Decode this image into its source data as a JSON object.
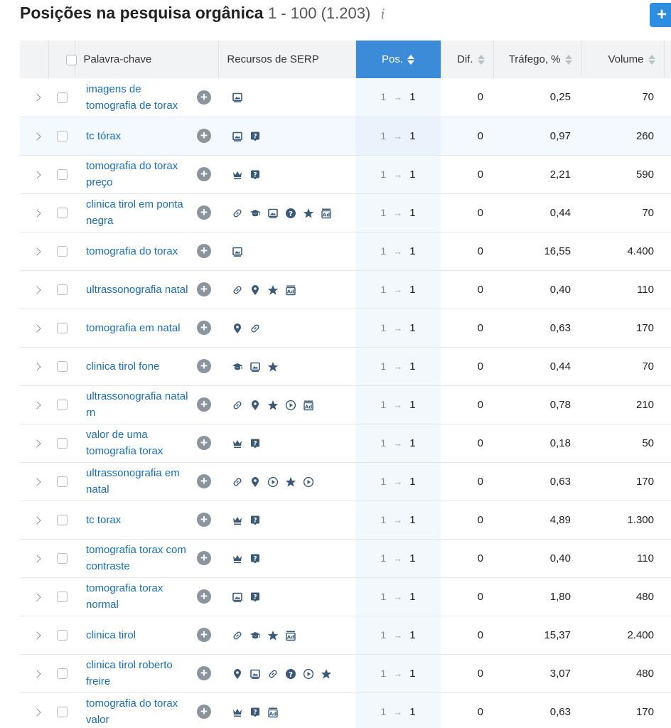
{
  "header": {
    "title": "Posições na pesquisa orgânica",
    "range": "1 - 100 (1.203)",
    "info_glyph": "i",
    "add_glyph": "+"
  },
  "columns": {
    "keyword": "Palavra-chave",
    "serp": "Recursos de SERP",
    "pos": "Pos.",
    "dif": "Dif.",
    "traffic": "Tráfego, %",
    "volume": "Volume"
  },
  "icons": {
    "image": "image-icon",
    "question": "faq-icon",
    "crown": "crown-icon",
    "link": "link-icon",
    "academic": "graduation-cap-icon",
    "help": "question-circle-icon",
    "star": "star-icon",
    "ad": "ad-icon",
    "pin": "map-pin-icon",
    "video": "video-icon"
  },
  "rows": [
    {
      "keyword": "imagens de tomografia de torax",
      "serp": [
        "image"
      ],
      "prev": "1",
      "pos": "1",
      "dif": "0",
      "traffic": "0,25",
      "volume": "70",
      "highlight": false
    },
    {
      "keyword": "tc tórax",
      "serp": [
        "image",
        "question"
      ],
      "prev": "1",
      "pos": "1",
      "dif": "0",
      "traffic": "0,97",
      "volume": "260",
      "highlight": true
    },
    {
      "keyword": "tomografia do torax preço",
      "serp": [
        "crown",
        "question"
      ],
      "prev": "1",
      "pos": "1",
      "dif": "0",
      "traffic": "2,21",
      "volume": "590",
      "highlight": false
    },
    {
      "keyword": "clinica tirol em ponta negra",
      "serp": [
        "link",
        "academic",
        "image",
        "help",
        "star",
        "ad"
      ],
      "prev": "1",
      "pos": "1",
      "dif": "0",
      "traffic": "0,44",
      "volume": "70",
      "highlight": false
    },
    {
      "keyword": "tomografia do torax",
      "serp": [
        "image"
      ],
      "prev": "1",
      "pos": "1",
      "dif": "0",
      "traffic": "16,55",
      "volume": "4.400",
      "highlight": false
    },
    {
      "keyword": "ultrassonografia natal",
      "serp": [
        "link",
        "pin",
        "star",
        "ad"
      ],
      "prev": "1",
      "pos": "1",
      "dif": "0",
      "traffic": "0,40",
      "volume": "110",
      "highlight": false
    },
    {
      "keyword": "tomografia em natal",
      "serp": [
        "pin",
        "link"
      ],
      "prev": "1",
      "pos": "1",
      "dif": "0",
      "traffic": "0,63",
      "volume": "170",
      "highlight": false
    },
    {
      "keyword": "clinica tirol fone",
      "serp": [
        "academic",
        "image",
        "star"
      ],
      "prev": "1",
      "pos": "1",
      "dif": "0",
      "traffic": "0,44",
      "volume": "70",
      "highlight": false
    },
    {
      "keyword": "ultrassonografia natal rn",
      "serp": [
        "link",
        "pin",
        "star",
        "video",
        "ad"
      ],
      "prev": "1",
      "pos": "1",
      "dif": "0",
      "traffic": "0,78",
      "volume": "210",
      "highlight": false
    },
    {
      "keyword": "valor de uma tomografia torax",
      "serp": [
        "crown",
        "question"
      ],
      "prev": "1",
      "pos": "1",
      "dif": "0",
      "traffic": "0,18",
      "volume": "50",
      "highlight": false
    },
    {
      "keyword": "ultrassonografia em natal",
      "serp": [
        "link",
        "pin",
        "video",
        "star",
        "video"
      ],
      "prev": "1",
      "pos": "1",
      "dif": "0",
      "traffic": "0,63",
      "volume": "170",
      "highlight": false
    },
    {
      "keyword": "tc torax",
      "serp": [
        "crown",
        "question"
      ],
      "prev": "1",
      "pos": "1",
      "dif": "0",
      "traffic": "4,89",
      "volume": "1.300",
      "highlight": false
    },
    {
      "keyword": "tomografia torax com contraste",
      "serp": [
        "crown",
        "question"
      ],
      "prev": "1",
      "pos": "1",
      "dif": "0",
      "traffic": "0,40",
      "volume": "110",
      "highlight": false
    },
    {
      "keyword": "tomografia torax normal",
      "serp": [
        "image",
        "question"
      ],
      "prev": "1",
      "pos": "1",
      "dif": "0",
      "traffic": "1,80",
      "volume": "480",
      "highlight": false
    },
    {
      "keyword": "clinica tirol",
      "serp": [
        "link",
        "academic",
        "star",
        "ad"
      ],
      "prev": "1",
      "pos": "1",
      "dif": "0",
      "traffic": "15,37",
      "volume": "2.400",
      "highlight": false
    },
    {
      "keyword": "clinica tirol roberto freire",
      "serp": [
        "pin",
        "image",
        "link",
        "help",
        "video",
        "star"
      ],
      "prev": "1",
      "pos": "1",
      "dif": "0",
      "traffic": "3,07",
      "volume": "480",
      "highlight": false
    },
    {
      "keyword": "tomografia do torax valor",
      "serp": [
        "crown",
        "question",
        "ad"
      ],
      "prev": "1",
      "pos": "1",
      "dif": "0",
      "traffic": "0,63",
      "volume": "170",
      "highlight": false
    }
  ],
  "colors": {
    "accent": "#3b8bd9",
    "link": "#1a6eb8",
    "icon": "#3a5a78"
  }
}
